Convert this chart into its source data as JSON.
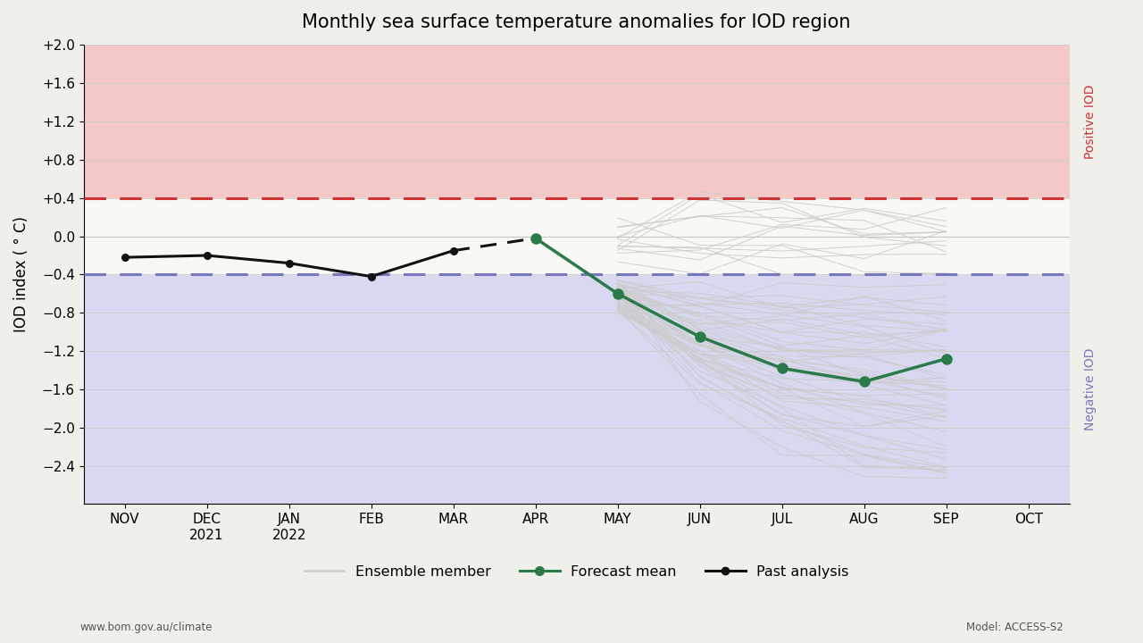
{
  "title": "Monthly sea surface temperature anomalies for IOD region",
  "ylabel": "IOD index ( ° C)",
  "background_color": "#f0f0eb",
  "positive_iod_color": "#f5c8c8",
  "negative_iod_color": "#d8d8f0",
  "positive_threshold_color": "#cc3333",
  "negative_threshold_color": "#7777bb",
  "positive_iod_threshold": 0.4,
  "negative_iod_threshold": -0.4,
  "x_tick_labels": [
    "NOV",
    "DEC\n2021",
    "JAN\n2022",
    "FEB",
    "MAR",
    "APR",
    "MAY",
    "JUN",
    "JUL",
    "AUG",
    "SEP",
    "OCT"
  ],
  "ylim": [
    -2.8,
    2.0
  ],
  "yticks": [
    -2.4,
    -2.0,
    -1.6,
    -1.2,
    -0.8,
    -0.4,
    0.0,
    0.4,
    0.8,
    1.2,
    1.6,
    2.0
  ],
  "ytick_labels": [
    "−2.4",
    "−2.0",
    "−1.6",
    "−1.2",
    "−0.8",
    "−0.4",
    "0.0",
    "+0.4",
    "+0.8",
    "+1.2",
    "+1.6",
    "+2.0"
  ],
  "past_analysis_x": [
    0,
    1,
    2,
    3,
    4,
    5
  ],
  "past_analysis_y": [
    -0.22,
    -0.2,
    -0.28,
    -0.42,
    -0.15,
    -0.02
  ],
  "forecast_mean_x": [
    5,
    6,
    7,
    8,
    9,
    10
  ],
  "forecast_mean_y": [
    -0.02,
    -0.6,
    -1.05,
    -1.38,
    -1.52,
    -1.28
  ],
  "ensemble_x_indices": [
    6,
    7,
    8,
    9,
    10
  ],
  "footer_left": "www.bom.gov.au/climate",
  "footer_right": "Model: ACCESS-S2",
  "ensemble_color": "#cccccc",
  "forecast_color": "#2a7a4a",
  "past_color": "#111111"
}
